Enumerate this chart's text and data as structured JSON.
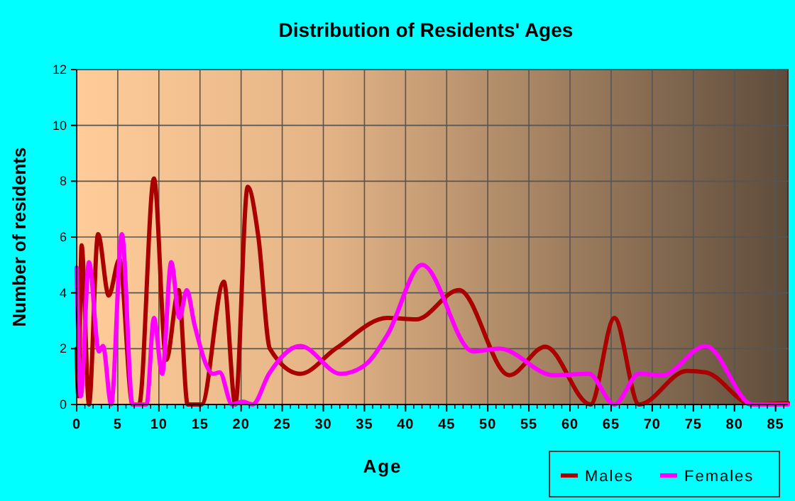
{
  "chart_data": {
    "type": "line",
    "title": "Distribution of Residents' Ages",
    "xlabel": "Age",
    "ylabel": "Number of residents",
    "xlim": [
      0,
      86.5
    ],
    "xticks": [
      0,
      5,
      10,
      15,
      20,
      25,
      30,
      35,
      40,
      45,
      50,
      55,
      60,
      65,
      70,
      75,
      80,
      85
    ],
    "ylim": [
      0,
      12
    ],
    "yticks": [
      0,
      2,
      4,
      6,
      8,
      10,
      12
    ],
    "grid": true,
    "legend": "bottom right",
    "line_style": "solid",
    "series": [
      {
        "name": "Males",
        "color": "#aa0000",
        "x": [
          0,
          0.2,
          0.6,
          1.5,
          2.6,
          3.9,
          5.2,
          6.8,
          7.6,
          9.4,
          10.9,
          12.4,
          13.5,
          15.2,
          17.9,
          19.3,
          20.8,
          22.1,
          23.5,
          27.2,
          31.5,
          37.8,
          41.3,
          46.5,
          52.6,
          57.0,
          62.5,
          65.4,
          68.4,
          74.2,
          76.5,
          82.2,
          86.5
        ],
        "values": [
          2,
          0.3,
          5.7,
          0,
          6.1,
          3.9,
          5.2,
          0,
          0,
          8.1,
          1.6,
          4.1,
          0,
          0,
          4.4,
          0,
          7.8,
          6,
          2,
          1.1,
          2,
          3.1,
          3.05,
          4.1,
          1.05,
          2.07,
          0,
          3.1,
          0,
          1.2,
          1.15,
          0,
          0.05
        ]
      },
      {
        "name": "Females",
        "color": "#ff00ff",
        "x": [
          0,
          0.5,
          1.5,
          2.7,
          3.2,
          4.2,
          5.5,
          6.8,
          8.5,
          9.4,
          10.4,
          11.5,
          12.5,
          13.4,
          14.3,
          16.6,
          17.4,
          18.9,
          20.2,
          21.4,
          23.4,
          27.2,
          32.1,
          35,
          37.8,
          42,
          48.2,
          51.4,
          58,
          62.3,
          65.4,
          68.4,
          71.2,
          76.5,
          82.2,
          86.5
        ],
        "values": [
          4.9,
          0.3,
          5.1,
          1.9,
          2.1,
          0,
          6.1,
          0,
          0,
          3.1,
          1.1,
          5.1,
          3.1,
          4.1,
          2.9,
          1.1,
          1.15,
          0,
          0.1,
          0,
          1.1,
          2.1,
          1.1,
          1.4,
          2.5,
          5,
          1.9,
          2,
          1.05,
          1.1,
          0,
          1.1,
          1.05,
          2.1,
          0,
          0
        ]
      }
    ]
  }
}
